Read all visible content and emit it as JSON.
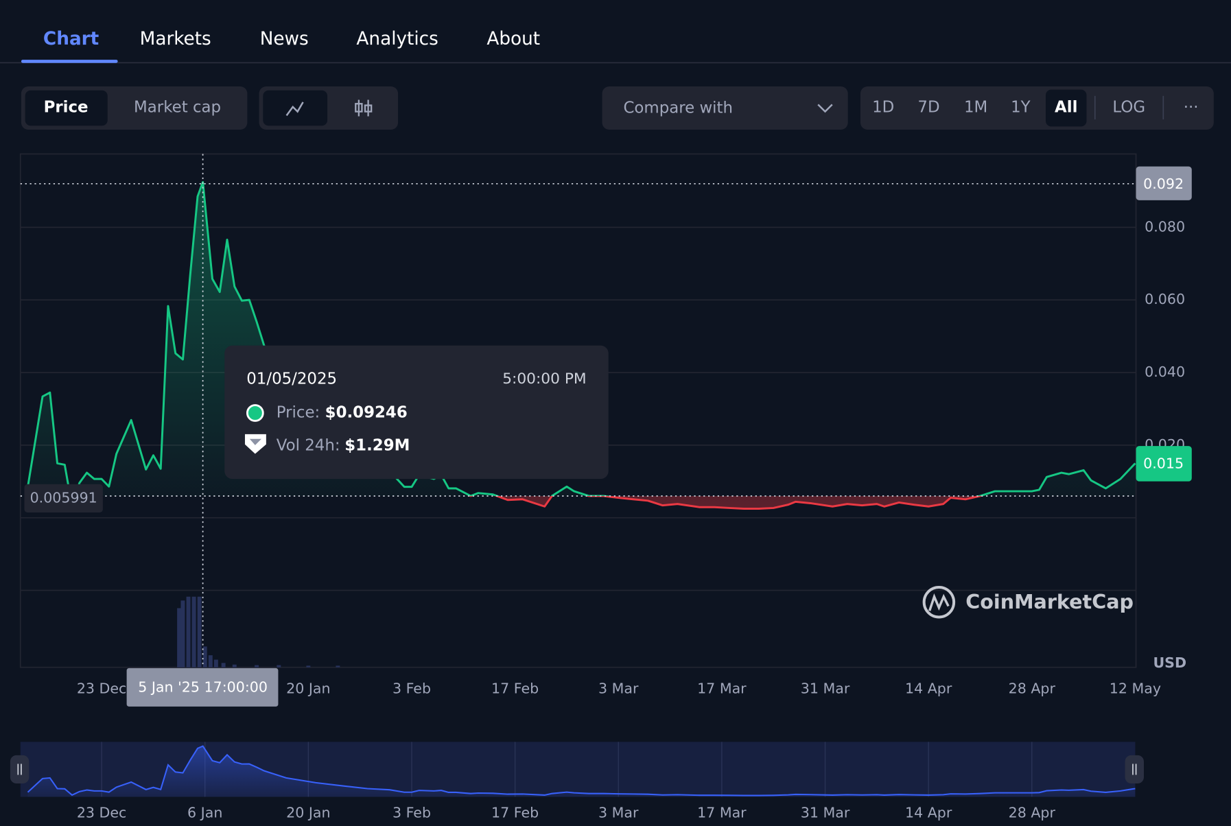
{
  "tabs": [
    "Chart",
    "Markets",
    "News",
    "Analytics",
    "About"
  ],
  "toolbar": {
    "metric": [
      "Price",
      "Market cap"
    ],
    "compare": "Compare with",
    "ranges": [
      "1D",
      "7D",
      "1M",
      "1Y",
      "All"
    ],
    "log": "LOG",
    "more": "···"
  },
  "chart_data": {
    "type": "line",
    "x": [
      "2024-12-13",
      "2024-12-15",
      "2024-12-16",
      "2024-12-17",
      "2024-12-18",
      "2024-12-19",
      "2024-12-20",
      "2024-12-21",
      "2024-12-22",
      "2024-12-23",
      "2024-12-24",
      "2024-12-25",
      "2024-12-27",
      "2024-12-29",
      "2024-12-30",
      "2024-12-31",
      "2025-01-01",
      "2025-01-02",
      "2025-01-03",
      "2025-01-04",
      "2025-01-05",
      "2025-01-05T17:00",
      "2025-01-07",
      "2025-01-08",
      "2025-01-09",
      "2025-01-10",
      "2025-01-11",
      "2025-01-12",
      "2025-01-13",
      "2025-01-14",
      "2025-01-17",
      "2025-01-21",
      "2025-01-25",
      "2025-01-28",
      "2025-01-31",
      "2025-02-02",
      "2025-02-03",
      "2025-02-04",
      "2025-02-06",
      "2025-02-07",
      "2025-02-08",
      "2025-02-09",
      "2025-02-11",
      "2025-02-12",
      "2025-02-14",
      "2025-02-16",
      "2025-02-18",
      "2025-02-21",
      "2025-02-22",
      "2025-02-24",
      "2025-02-25",
      "2025-02-27",
      "2025-03-01",
      "2025-03-03",
      "2025-03-05",
      "2025-03-07",
      "2025-03-09",
      "2025-03-11",
      "2025-03-14",
      "2025-03-16",
      "2025-03-18",
      "2025-03-20",
      "2025-03-22",
      "2025-03-24",
      "2025-03-26",
      "2025-03-27",
      "2025-03-29",
      "2025-04-01",
      "2025-04-03",
      "2025-04-05",
      "2025-04-07",
      "2025-04-08",
      "2025-04-10",
      "2025-04-12",
      "2025-04-14",
      "2025-04-16",
      "2025-04-17",
      "2025-04-19",
      "2025-04-21",
      "2025-04-23",
      "2025-04-25",
      "2025-04-28",
      "2025-04-29",
      "2025-04-30",
      "2025-05-02",
      "2025-05-03",
      "2025-05-05",
      "2025-05-06",
      "2025-05-08",
      "2025-05-10",
      "2025-05-12"
    ],
    "values": [
      0.0085,
      0.0334,
      0.0345,
      0.015,
      0.0146,
      0.0031,
      0.0096,
      0.0124,
      0.0107,
      0.0107,
      0.0086,
      0.0176,
      0.0269,
      0.0133,
      0.0172,
      0.0135,
      0.0583,
      0.0453,
      0.0436,
      0.0669,
      0.0885,
      0.09246,
      0.0658,
      0.0622,
      0.0766,
      0.0637,
      0.0598,
      0.06,
      0.054,
      0.0475,
      0.0345,
      0.0258,
      0.0194,
      0.0151,
      0.0129,
      0.0085,
      0.0085,
      0.0118,
      0.0107,
      0.0118,
      0.0081,
      0.0081,
      0.006,
      0.0068,
      0.0064,
      0.0049,
      0.0051,
      0.0031,
      0.006,
      0.0086,
      0.0073,
      0.006,
      0.006,
      0.0055,
      0.0051,
      0.0047,
      0.0034,
      0.0038,
      0.0029,
      0.0029,
      0.0027,
      0.0025,
      0.0025,
      0.0027,
      0.0036,
      0.0044,
      0.004,
      0.0031,
      0.0038,
      0.0034,
      0.0038,
      0.0031,
      0.0042,
      0.0036,
      0.0031,
      0.0038,
      0.0055,
      0.0051,
      0.006,
      0.0073,
      0.0073,
      0.0073,
      0.0077,
      0.0112,
      0.0124,
      0.012,
      0.0131,
      0.0103,
      0.0081,
      0.0107,
      0.015
    ],
    "color": "#16c784",
    "below_color": "#ea3943",
    "xlim": [
      "2024-12-12",
      "2025-05-12"
    ],
    "xticks": [
      {
        "value": "2024-12-23",
        "label": "23 Dec"
      },
      {
        "value": "2025-01-20",
        "label": "20 Jan"
      },
      {
        "value": "2025-02-03",
        "label": "3 Feb"
      },
      {
        "value": "2025-02-17",
        "label": "17 Feb"
      },
      {
        "value": "2025-03-03",
        "label": "3 Mar"
      },
      {
        "value": "2025-03-17",
        "label": "17 Mar"
      },
      {
        "value": "2025-03-31",
        "label": "31 Mar"
      },
      {
        "value": "2025-04-14",
        "label": "14 Apr"
      },
      {
        "value": "2025-04-28",
        "label": "28 Apr"
      },
      {
        "value": "2025-05-12",
        "label": "12 May"
      }
    ],
    "ylim": [
      -0.0412,
      0.1002
    ],
    "yticks": [
      {
        "value": 0.08,
        "label": "0.080"
      },
      {
        "value": 0.06,
        "label": "0.060"
      },
      {
        "value": 0.04,
        "label": "0.040"
      },
      {
        "value": 0.02,
        "label": "0.020"
      },
      {
        "value": 0,
        "label": null
      },
      {
        "value": -0.02,
        "label": null
      }
    ],
    "grid": true,
    "unit": "USD",
    "baseline": {
      "value": 0.005991,
      "label": "0.005991"
    },
    "high": {
      "value": 0.092,
      "label": "0.092"
    },
    "last": {
      "value": 0.015,
      "label": "0.015"
    },
    "crosshair_label": "5 Jan '25 17:00:00",
    "tooltip": {
      "date": "01/05/2025",
      "time": "5:00:00 PM",
      "price_name": "Price:",
      "price": "$0.09246",
      "volume_name": "Vol 24h:",
      "volume": "$1.29M"
    },
    "volume": {
      "color": "#27325a",
      "x": [
        "2025-01-02T12:00",
        "2025-01-03T00:00",
        "2025-01-03T18:00",
        "2025-01-04T12:00",
        "2025-01-05T06:00",
        "2025-01-06T00:00",
        "2025-01-06T18:00",
        "2025-01-07T12:00",
        "2025-01-08T12:00",
        "2025-01-10",
        "2025-01-13",
        "2025-01-16",
        "2025-01-20",
        "2025-01-24"
      ],
      "values": [
        1080000,
        1220000,
        1290000,
        1290000,
        1290000,
        380000,
        220000,
        140000,
        80000,
        50000,
        40000,
        40000,
        30000,
        30000
      ]
    },
    "navigator": {
      "color": "#3861fb",
      "xticks": [
        {
          "value": "2024-12-23",
          "label": "23 Dec"
        },
        {
          "value": "2025-01-06",
          "label": "6 Jan"
        },
        {
          "value": "2025-01-20",
          "label": "20 Jan"
        },
        {
          "value": "2025-02-03",
          "label": "3 Feb"
        },
        {
          "value": "2025-02-17",
          "label": "17 Feb"
        },
        {
          "value": "2025-03-03",
          "label": "3 Mar"
        },
        {
          "value": "2025-03-17",
          "label": "17 Mar"
        },
        {
          "value": "2025-03-31",
          "label": "31 Mar"
        },
        {
          "value": "2025-04-14",
          "label": "14 Apr"
        },
        {
          "value": "2025-04-28",
          "label": "28 Apr"
        }
      ]
    },
    "watermark": "CoinMarketCap"
  }
}
